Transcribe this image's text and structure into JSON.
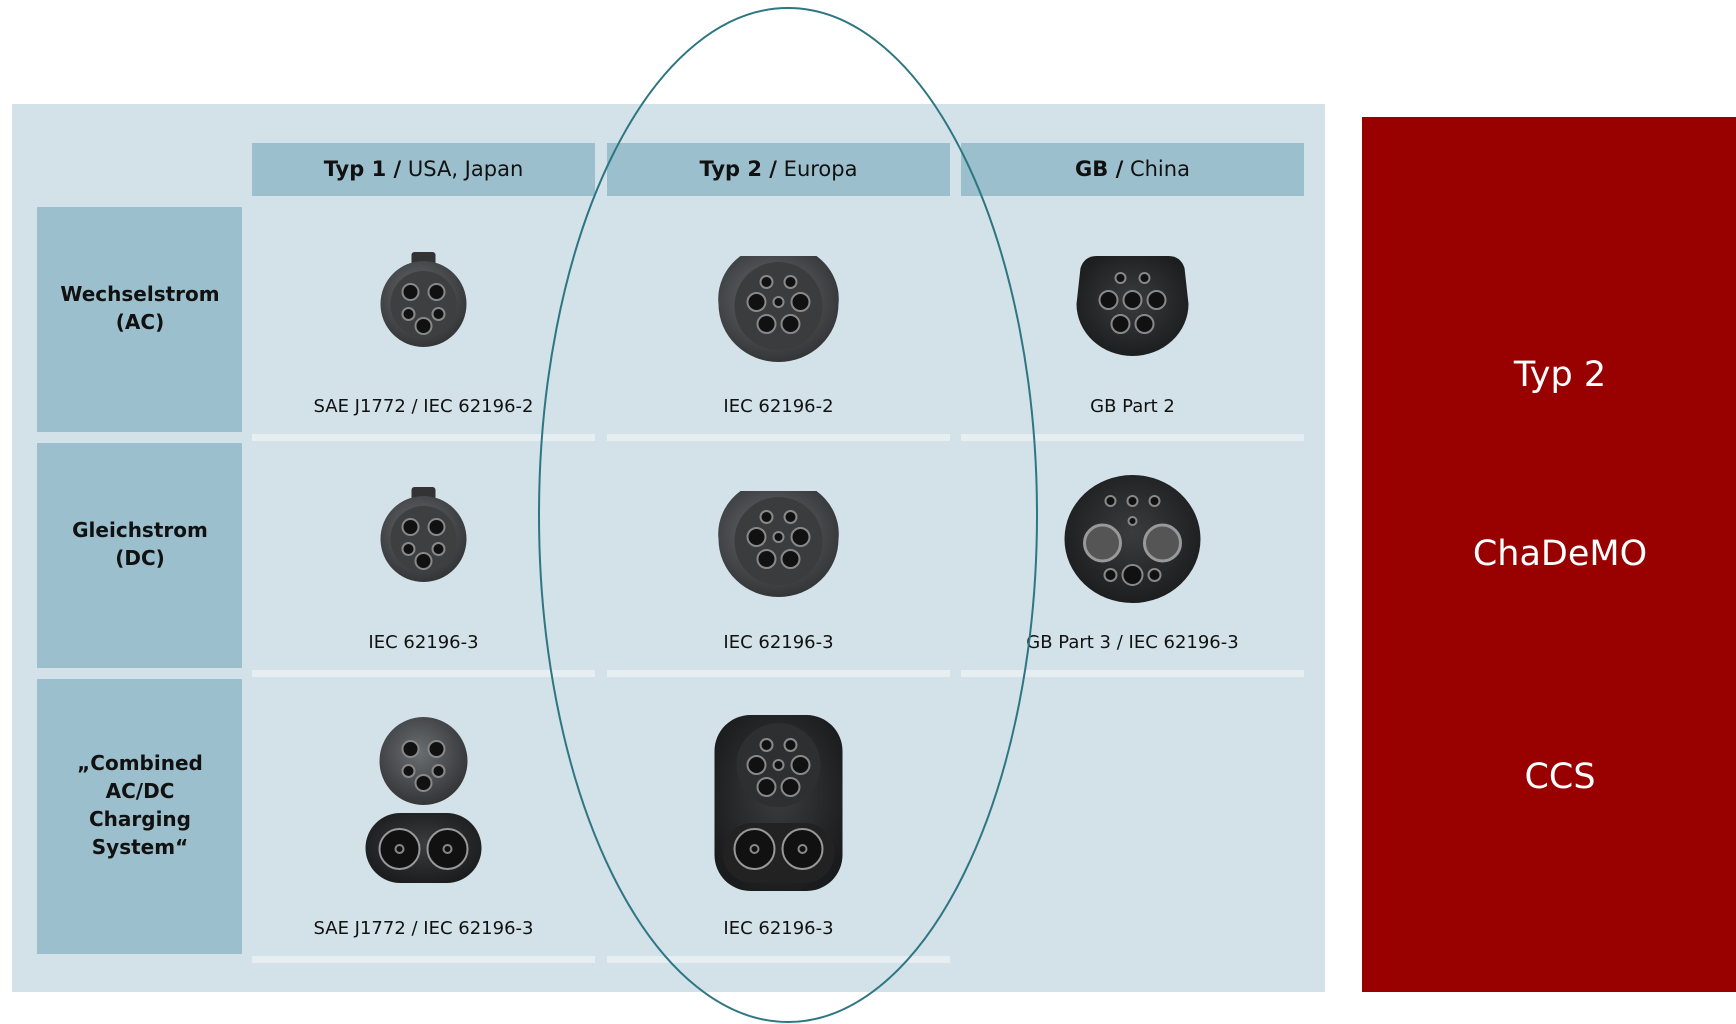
{
  "table": {
    "header": [
      {
        "bold": "Typ 1 /",
        "regular": "USA, Japan"
      },
      {
        "bold": "Typ 2 /",
        "regular": "Europa"
      },
      {
        "bold": "GB /",
        "regular": "China"
      }
    ],
    "rows": [
      {
        "label": [
          "Wechselstrom",
          "(AC)"
        ],
        "cells": [
          "SAE J1772 / IEC 62196-2",
          "IEC 62196-2",
          "GB Part 2"
        ]
      },
      {
        "label": [
          "Gleichstrom",
          "(DC)"
        ],
        "cells": [
          "IEC 62196-3",
          "IEC 62196-3",
          "GB Part 3 / IEC 62196-3"
        ]
      },
      {
        "label": [
          "„Combined",
          "AC/DC",
          "Charging",
          "System“"
        ],
        "cells": [
          "SAE J1772 / IEC 62196-3",
          "IEC 62196-3",
          null
        ]
      }
    ]
  },
  "side_panel": {
    "items": [
      "Typ 2",
      "ChaDeMO",
      "CCS"
    ]
  }
}
